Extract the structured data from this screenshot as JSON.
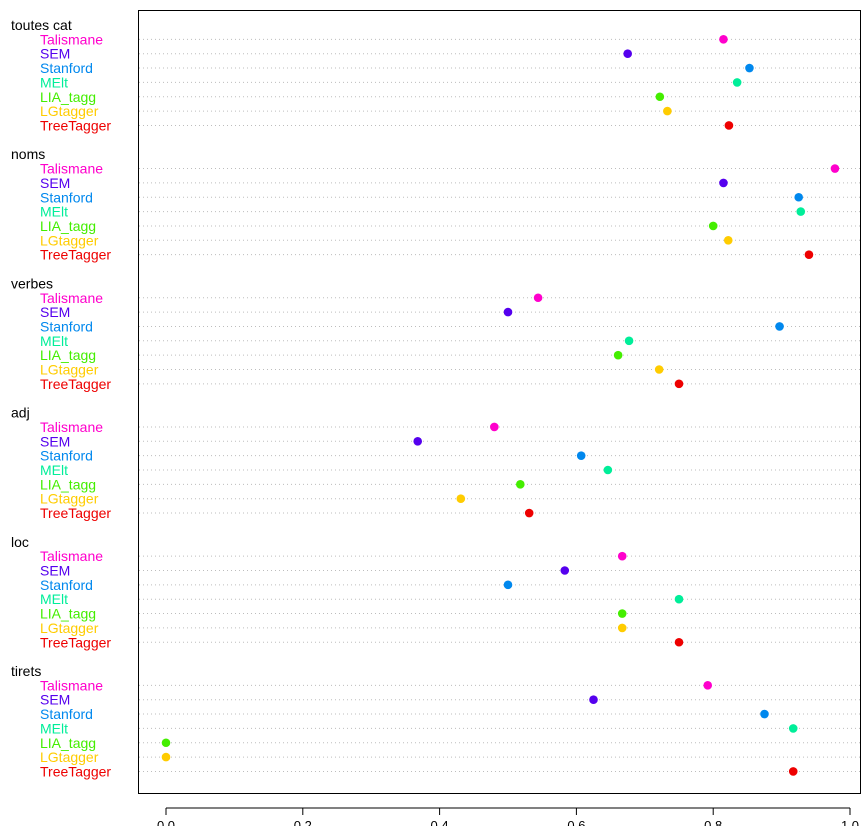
{
  "chart_data": {
    "type": "scatter",
    "subtype": "grouped-dotchart",
    "xlim": [
      0,
      1
    ],
    "xticks": [
      0.0,
      0.2,
      0.4,
      0.6,
      0.8,
      1.0
    ],
    "xtick_labels": [
      "0.0",
      "0.2",
      "0.4",
      "0.6",
      "0.8",
      "1.0"
    ],
    "grid": true,
    "series": [
      {
        "name": "Talismane",
        "color": "#FF00CC"
      },
      {
        "name": "SEM",
        "color": "#5500EE"
      },
      {
        "name": "Stanford",
        "color": "#0088EE"
      },
      {
        "name": "MElt",
        "color": "#00EE99"
      },
      {
        "name": "LIA_tagg",
        "color": "#44EE00"
      },
      {
        "name": "LGtagger",
        "color": "#FFCC00"
      },
      {
        "name": "TreeTagger",
        "color": "#EE0000"
      }
    ],
    "groups": [
      {
        "label": "toutes cat",
        "values": [
          0.815,
          0.675,
          0.853,
          0.835,
          0.722,
          0.733,
          0.823
        ]
      },
      {
        "label": "noms",
        "values": [
          0.978,
          0.815,
          0.925,
          0.928,
          0.8,
          0.822,
          0.94
        ]
      },
      {
        "label": "verbes",
        "values": [
          0.544,
          0.5,
          0.897,
          0.677,
          0.661,
          0.721,
          0.75
        ]
      },
      {
        "label": "adj",
        "values": [
          0.48,
          0.368,
          0.607,
          0.646,
          0.518,
          0.431,
          0.531
        ]
      },
      {
        "label": "loc",
        "values": [
          0.667,
          0.583,
          0.5,
          0.75,
          0.667,
          0.667,
          0.75
        ]
      },
      {
        "label": "tirets",
        "values": [
          0.792,
          0.625,
          0.875,
          0.917,
          0.0,
          0.0,
          0.917
        ]
      }
    ]
  }
}
